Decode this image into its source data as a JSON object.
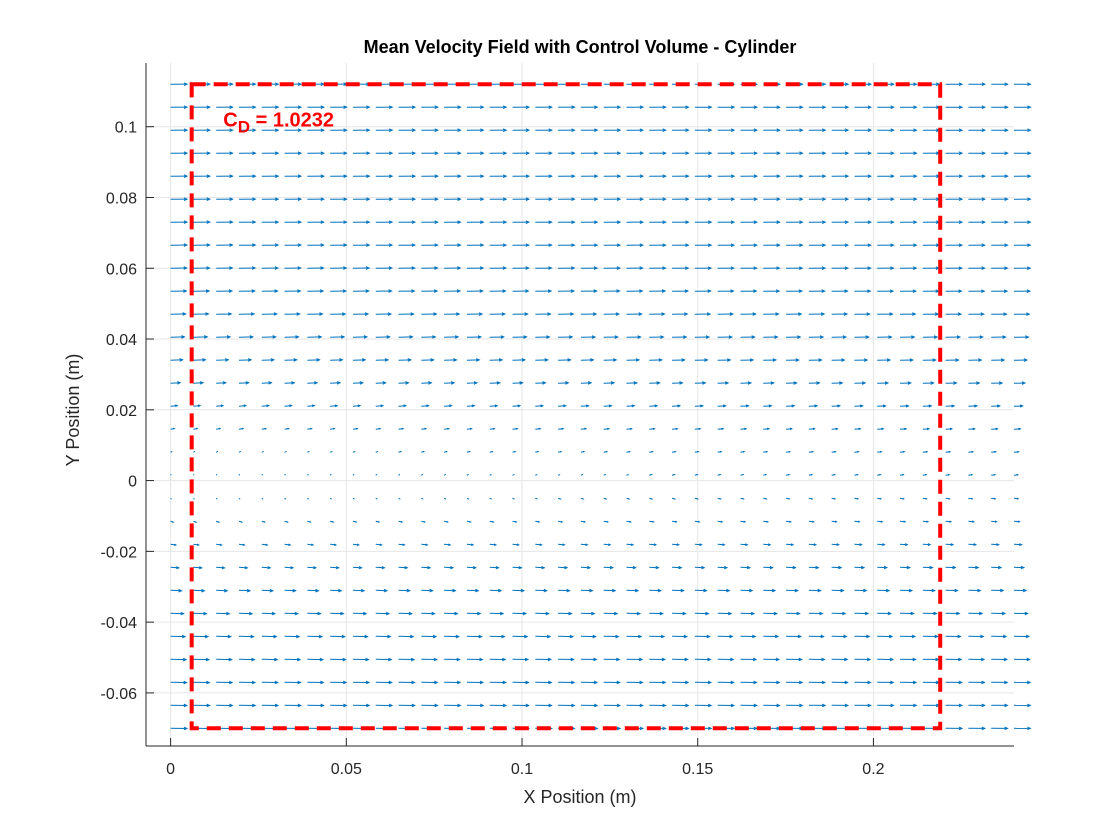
{
  "chart_data": {
    "type": "quiver",
    "title": "Mean Velocity Field with Control Volume - Cylinder",
    "xlabel": "X Position (m)",
    "ylabel": "Y Position (m)",
    "xlim": [
      -0.007,
      0.24
    ],
    "ylim": [
      -0.075,
      0.118
    ],
    "xticks": [
      0,
      0.05,
      0.1,
      0.15,
      0.2
    ],
    "xtick_labels": [
      "0",
      "0.05",
      "0.1",
      "0.15",
      "0.2"
    ],
    "yticks": [
      -0.06,
      -0.04,
      -0.02,
      0,
      0.02,
      0.04,
      0.06,
      0.08,
      0.1
    ],
    "ytick_labels": [
      "-0.06",
      "-0.04",
      "-0.02",
      "0",
      "0.02",
      "0.04",
      "0.06",
      "0.08",
      "0.1"
    ],
    "grid": true,
    "vector_field": {
      "x_range": [
        0,
        0.24
      ],
      "y_range": [
        -0.07,
        0.112
      ],
      "nx": 38,
      "ny": 29,
      "freestream_u": 1.0,
      "wake_center_y": 0.0,
      "wake_half_width": 0.03,
      "color": "#0072BD"
    },
    "control_volume": {
      "x": [
        0.006,
        0.219
      ],
      "y": [
        -0.07,
        0.112
      ],
      "color": "#FF0000",
      "linestyle": "dashed"
    },
    "annotation": {
      "label_main": "C",
      "label_sub": "D",
      "label_value": " = 1.0232",
      "x": 0.015,
      "y": 0.1,
      "color": "#FF0000"
    }
  }
}
